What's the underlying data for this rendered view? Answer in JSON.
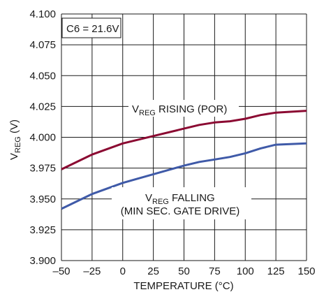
{
  "chart_data": {
    "type": "line",
    "annotation_box": "C6 = 21.6V",
    "xlabel": "TEMPERATURE (°C)",
    "ylabel": {
      "main": "V",
      "sub": "REG",
      "unit": " (V)"
    },
    "xlim": [
      -50,
      150
    ],
    "ylim": [
      3.9,
      4.1
    ],
    "x_ticks": [
      "–50",
      "–25",
      "0",
      "25",
      "50",
      "75",
      "100",
      "125",
      "150"
    ],
    "y_ticks": [
      "3.900",
      "3.925",
      "3.950",
      "3.975",
      "4.000",
      "4.025",
      "4.050",
      "4.075",
      "4.100"
    ],
    "grid": true,
    "series": [
      {
        "label_main": "V",
        "label_sub": "REG",
        "label_rest": " RISING (POR)",
        "color": "#8b0a32",
        "x": [
          -50,
          -25,
          0,
          25,
          50,
          62.5,
          75,
          87.5,
          100,
          112.5,
          125,
          150
        ],
        "y": [
          3.974,
          3.986,
          3.995,
          4.001,
          4.007,
          4.01,
          4.012,
          4.013,
          4.015,
          4.018,
          4.02,
          4.0215
        ]
      },
      {
        "label_main": "V",
        "label_sub": "REG",
        "label_rest": " FALLING",
        "label_line2": "(MIN SEC. GATE DRIVE)",
        "color": "#3f5aa8",
        "x": [
          -50,
          -25,
          0,
          25,
          50,
          62.5,
          75,
          87.5,
          100,
          112.5,
          125,
          150
        ],
        "y": [
          3.942,
          3.954,
          3.963,
          3.97,
          3.977,
          3.98,
          3.982,
          3.984,
          3.987,
          3.991,
          3.994,
          3.995
        ]
      }
    ]
  }
}
